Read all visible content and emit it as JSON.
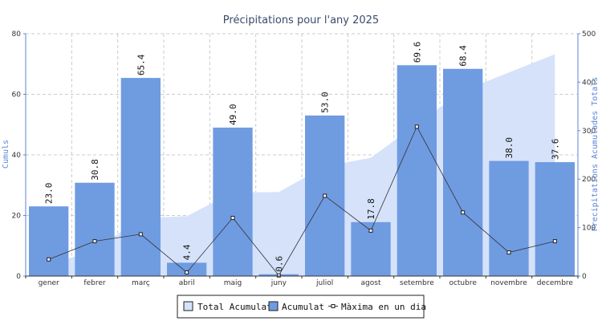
{
  "chart_data": {
    "type": "bar",
    "title": "Précipitations pour l'any 2025",
    "ylabel": "Cumuls",
    "y2label": "Precipitations Acumulades Totals",
    "ylim": [
      0,
      80
    ],
    "y2lim": [
      0,
      500
    ],
    "yticks": [
      0,
      20,
      40,
      60,
      80
    ],
    "y2ticks": [
      0,
      100,
      200,
      300,
      400,
      500
    ],
    "grid": true,
    "legend_position": "bottom-center",
    "categories": [
      "gener",
      "febrer",
      "març",
      "abril",
      "maig",
      "juny",
      "juliol",
      "agost",
      "setembre",
      "octubre",
      "novembre",
      "decembre"
    ],
    "series": [
      {
        "name": "Total Acumulat",
        "type": "area",
        "axis": "right",
        "color": "#d5e2fa",
        "values": [
          23.0,
          53.8,
          119.2,
          123.6,
          172.6,
          173.2,
          226.2,
          244.0,
          313.6,
          382.0,
          420.0,
          457.6
        ]
      },
      {
        "name": "Acumulat",
        "type": "bar",
        "axis": "left",
        "color": "#6f9be1",
        "values": [
          23.0,
          30.8,
          65.4,
          4.4,
          49.0,
          0.6,
          53.0,
          17.8,
          69.6,
          68.4,
          38.0,
          37.6
        ],
        "labels": [
          "23.0",
          "30.8",
          "65.4",
          "4.4",
          "49.0",
          "0.6",
          "53.0",
          "17.8",
          "69.6",
          "68.4",
          "38.0",
          "37.6"
        ]
      },
      {
        "name": "Màxima en un dia",
        "type": "line",
        "axis": "left",
        "color": "#333333",
        "values": [
          5.5,
          11.5,
          13.8,
          1.2,
          19.2,
          0.2,
          26.5,
          15.0,
          49.3,
          21.0,
          7.8,
          11.5
        ]
      }
    ]
  }
}
